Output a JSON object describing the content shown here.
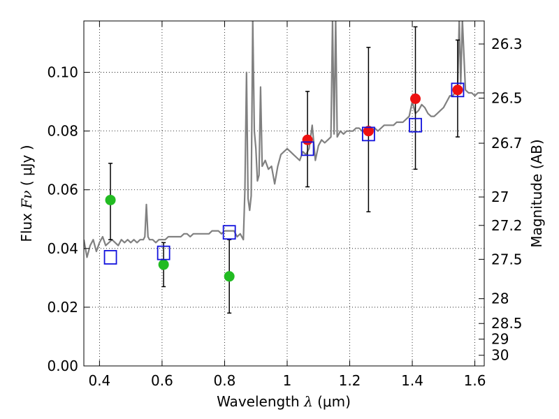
{
  "chart_data": {
    "type": "scatter",
    "xlabel": {
      "prefix": "Wavelength  ",
      "symbol": "λ",
      "unit": " (μm)"
    },
    "ylabel": {
      "prefix": "Flux  ",
      "symbol": "Fν",
      "unit": " ( μJy )"
    },
    "y2label": "Magnitude (AB)",
    "xlim": [
      0.35,
      1.63
    ],
    "ylim": [
      0.0,
      0.1175
    ],
    "grid": true,
    "x_ticks": [
      {
        "value": 0.4,
        "label": "0.4"
      },
      {
        "value": 0.6,
        "label": "0.6"
      },
      {
        "value": 0.8,
        "label": "0.8"
      },
      {
        "value": 1.0,
        "label": "1"
      },
      {
        "value": 1.2,
        "label": "1.2"
      },
      {
        "value": 1.4,
        "label": "1.4"
      },
      {
        "value": 1.6,
        "label": "1.6"
      }
    ],
    "y_ticks": [
      {
        "value": 0.0,
        "label": "0.00"
      },
      {
        "value": 0.02,
        "label": "0.02"
      },
      {
        "value": 0.04,
        "label": "0.04"
      },
      {
        "value": 0.06,
        "label": "0.06"
      },
      {
        "value": 0.08,
        "label": "0.08"
      },
      {
        "value": 0.1,
        "label": "0.10"
      }
    ],
    "magnitude_ticks": [
      {
        "mag": 26.3,
        "label": "26.3"
      },
      {
        "mag": 26.5,
        "label": "26.5"
      },
      {
        "mag": 26.7,
        "label": "26.7"
      },
      {
        "mag": 27.0,
        "label": "27"
      },
      {
        "mag": 27.2,
        "label": "27.2"
      },
      {
        "mag": 27.5,
        "label": "27.5"
      },
      {
        "mag": 28.0,
        "label": "28"
      },
      {
        "mag": 28.5,
        "label": "28.5"
      },
      {
        "mag": 29.0,
        "label": "29"
      },
      {
        "mag": 30.0,
        "label": "30"
      }
    ],
    "series": [
      {
        "name": "model_spectrum",
        "kind": "line",
        "color": "#808080",
        "x": [
          0.35,
          0.36,
          0.37,
          0.38,
          0.39,
          0.4,
          0.41,
          0.42,
          0.43,
          0.44,
          0.45,
          0.46,
          0.47,
          0.48,
          0.49,
          0.5,
          0.51,
          0.52,
          0.53,
          0.54,
          0.545,
          0.55,
          0.555,
          0.56,
          0.57,
          0.58,
          0.59,
          0.6,
          0.61,
          0.62,
          0.63,
          0.64,
          0.65,
          0.66,
          0.67,
          0.68,
          0.69,
          0.7,
          0.71,
          0.72,
          0.73,
          0.74,
          0.75,
          0.76,
          0.77,
          0.78,
          0.79,
          0.8,
          0.81,
          0.82,
          0.83,
          0.84,
          0.85,
          0.86,
          0.865,
          0.87,
          0.875,
          0.88,
          0.885,
          0.89,
          0.895,
          0.9,
          0.905,
          0.91,
          0.915,
          0.92,
          0.93,
          0.94,
          0.95,
          0.96,
          0.97,
          0.98,
          0.99,
          1.0,
          1.01,
          1.02,
          1.03,
          1.04,
          1.05,
          1.06,
          1.07,
          1.08,
          1.09,
          1.1,
          1.11,
          1.12,
          1.13,
          1.14,
          1.145,
          1.15,
          1.155,
          1.16,
          1.17,
          1.18,
          1.19,
          1.2,
          1.21,
          1.22,
          1.23,
          1.24,
          1.25,
          1.26,
          1.27,
          1.28,
          1.29,
          1.3,
          1.31,
          1.32,
          1.33,
          1.34,
          1.35,
          1.36,
          1.37,
          1.38,
          1.39,
          1.4,
          1.41,
          1.42,
          1.43,
          1.44,
          1.45,
          1.46,
          1.47,
          1.48,
          1.49,
          1.5,
          1.51,
          1.52,
          1.53,
          1.54,
          1.545,
          1.55,
          1.555,
          1.56,
          1.57,
          1.58,
          1.59,
          1.6,
          1.61,
          1.62,
          1.63
        ],
        "y": [
          0.043,
          0.037,
          0.041,
          0.043,
          0.039,
          0.042,
          0.044,
          0.041,
          0.042,
          0.043,
          0.042,
          0.041,
          0.043,
          0.042,
          0.043,
          0.042,
          0.043,
          0.042,
          0.043,
          0.043,
          0.044,
          0.055,
          0.044,
          0.043,
          0.043,
          0.042,
          0.043,
          0.043,
          0.043,
          0.044,
          0.044,
          0.044,
          0.044,
          0.044,
          0.045,
          0.045,
          0.044,
          0.045,
          0.045,
          0.045,
          0.045,
          0.045,
          0.045,
          0.046,
          0.046,
          0.046,
          0.045,
          0.046,
          0.046,
          0.046,
          0.046,
          0.044,
          0.045,
          0.043,
          0.06,
          0.1,
          0.057,
          0.053,
          0.058,
          0.118,
          0.08,
          0.074,
          0.063,
          0.065,
          0.095,
          0.068,
          0.07,
          0.067,
          0.068,
          0.062,
          0.068,
          0.072,
          0.073,
          0.074,
          0.073,
          0.072,
          0.071,
          0.07,
          0.073,
          0.072,
          0.074,
          0.082,
          0.07,
          0.075,
          0.077,
          0.076,
          0.077,
          0.078,
          0.118,
          0.079,
          0.118,
          0.078,
          0.08,
          0.079,
          0.08,
          0.08,
          0.08,
          0.081,
          0.081,
          0.08,
          0.08,
          0.081,
          0.08,
          0.081,
          0.08,
          0.081,
          0.082,
          0.082,
          0.082,
          0.082,
          0.083,
          0.083,
          0.083,
          0.084,
          0.085,
          0.09,
          0.086,
          0.087,
          0.089,
          0.088,
          0.086,
          0.085,
          0.085,
          0.086,
          0.087,
          0.088,
          0.09,
          0.092,
          0.092,
          0.094,
          0.094,
          0.118,
          0.096,
          0.118,
          0.094,
          0.093,
          0.093,
          0.092,
          0.093,
          0.093,
          0.093
        ]
      },
      {
        "name": "observed_green",
        "kind": "points",
        "color": "#22bb22",
        "x": [
          0.435,
          0.605,
          0.815
        ],
        "y": [
          0.0565,
          0.0345,
          0.0305
        ],
        "err_low": [
          0.043,
          0.027,
          0.018
        ],
        "err_high": [
          0.069,
          0.042,
          0.043
        ]
      },
      {
        "name": "observed_red",
        "kind": "points",
        "color": "#ee1111",
        "x": [
          1.065,
          1.26,
          1.41,
          1.545
        ],
        "y": [
          0.077,
          0.08,
          0.091,
          0.094
        ],
        "err_low": [
          0.061,
          0.0525,
          0.067,
          0.078
        ],
        "err_high": [
          0.0935,
          0.1085,
          0.1155,
          0.111
        ]
      },
      {
        "name": "model_photometry",
        "kind": "open_squares",
        "color": "#1111dd",
        "x": [
          0.435,
          0.605,
          0.815,
          1.065,
          1.26,
          1.41,
          1.545
        ],
        "y": [
          0.037,
          0.0385,
          0.0455,
          0.074,
          0.079,
          0.082,
          0.094
        ]
      }
    ]
  }
}
